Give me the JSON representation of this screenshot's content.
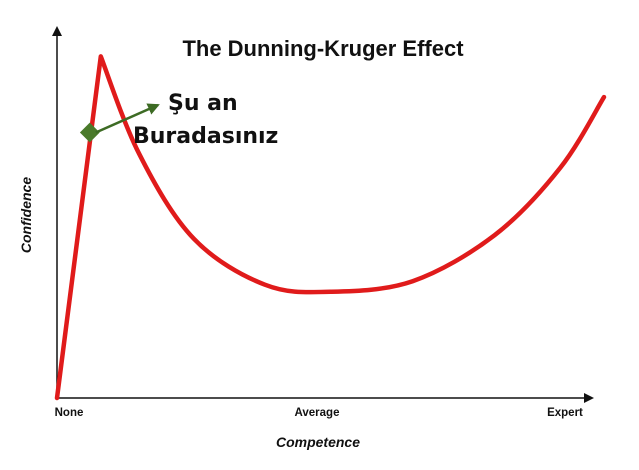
{
  "chart_data": {
    "type": "line",
    "title": "The Dunning-Kruger Effect",
    "xlabel": "Competence",
    "ylabel": "Confidence",
    "x_ticks": [
      "None",
      "Average",
      "Expert"
    ],
    "xlim": [
      0,
      10
    ],
    "ylim": [
      0,
      10
    ],
    "grid": false,
    "legend": "none",
    "series": [
      {
        "points": [
          [
            0.0,
            0.0
          ],
          [
            0.8,
            9.65
          ],
          [
            1.5,
            6.9
          ],
          [
            2.5,
            4.5
          ],
          [
            3.8,
            3.2
          ],
          [
            5.0,
            3.0
          ],
          [
            6.5,
            3.3
          ],
          [
            8.0,
            4.6
          ],
          [
            9.2,
            6.5
          ],
          [
            10.0,
            8.5
          ]
        ]
      }
    ],
    "annotation": {
      "lines": [
        "Şu an",
        "Buradasınız"
      ],
      "marker_point": [
        0.6,
        7.5
      ]
    }
  },
  "colors": {
    "curve": "#e01b1b",
    "axes": "#111111",
    "marker": "#4a7a2a",
    "arrow": "#3d6b24"
  }
}
